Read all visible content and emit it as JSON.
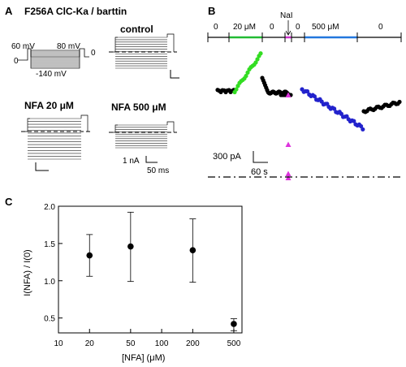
{
  "panels": {
    "a": {
      "letter": "A",
      "title": "F256A  ClC-Ka / barttin",
      "protocol": {
        "v_hold_start": "60 mV",
        "v_hold_end": "80 mV",
        "v_min": "-140 mV",
        "zero_left": "0",
        "zero_right": "0"
      },
      "control_label": "control",
      "nfa20_label": "NFA 20 μM",
      "nfa500_label": "NFA 500 μM",
      "scale_current": "1 nA",
      "scale_time": "50 ms"
    },
    "b": {
      "letter": "B",
      "segments": [
        {
          "label": "0",
          "color": "#000000"
        },
        {
          "label": "20 μM",
          "color": "#22bb33"
        },
        {
          "label": "0",
          "color": "#000000"
        },
        {
          "label": "",
          "color": "#cc33cc"
        },
        {
          "label": "0",
          "color": "#000000"
        },
        {
          "label": "500 μM",
          "color": "#2277dd"
        },
        {
          "label": "0",
          "color": "#000000"
        }
      ],
      "nai_label": "NaI",
      "scale_current": "300 pA",
      "scale_time": "60 s"
    },
    "c": {
      "letter": "C"
    }
  },
  "chart_data": {
    "type": "scatter",
    "title": "",
    "xlabel": "[NFA]  (μM)",
    "ylabel": "I(NFA) / I(0)",
    "x_scale": "log",
    "xlim": [
      10,
      600
    ],
    "ylim": [
      0.3,
      2.0
    ],
    "x_ticks": [
      10,
      20,
      50,
      100,
      200,
      500
    ],
    "x_tick_labels": [
      "10",
      "20",
      "50",
      "100",
      "200",
      "500"
    ],
    "y_ticks": [
      0.5,
      1.0,
      1.5,
      2.0
    ],
    "y_tick_labels": [
      "0.5",
      "1.0",
      "1.5",
      "2.0"
    ],
    "grid": false,
    "points": [
      {
        "x": 20,
        "y": 1.34,
        "err_low": 1.06,
        "err_high": 1.62
      },
      {
        "x": 50,
        "y": 1.46,
        "err_low": 0.99,
        "err_high": 1.92
      },
      {
        "x": 200,
        "y": 1.41,
        "err_low": 0.98,
        "err_high": 1.83
      },
      {
        "x": 500,
        "y": 0.42,
        "err_low": 0.33,
        "err_high": 0.49
      }
    ]
  }
}
